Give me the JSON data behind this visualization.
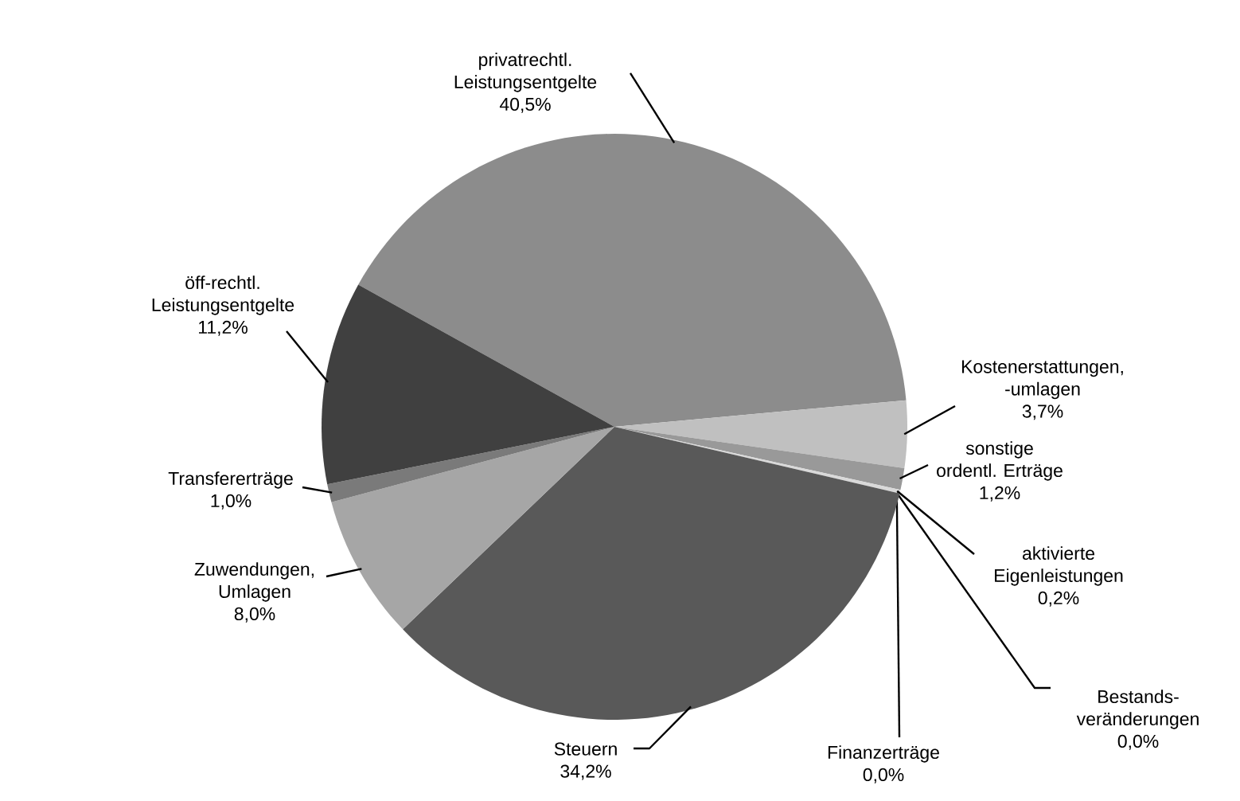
{
  "chart_data": {
    "type": "pie",
    "categories": [
      "privatrechtl. Leistungsentgelte",
      "Kostenerstattungen, -umlagen",
      "sonstige ordentl. Erträge",
      "aktivierte Eigenleistungen",
      "Bestands- veränderungen",
      "Finanzerträge",
      "Steuern",
      "Zuwendungen, Umlagen",
      "Transfererträge",
      "öff-rechtl. Leistungsentgelte"
    ],
    "values": [
      40.5,
      3.7,
      1.2,
      0.2,
      0.0,
      0.0,
      34.2,
      8.0,
      1.0,
      11.2
    ],
    "value_labels": [
      "40,5%",
      "3,7%",
      "1,2%",
      "0,2%",
      "0,0%",
      "0,0%",
      "34,2%",
      "8,0%",
      "1,0%",
      "11,2%"
    ],
    "colors": [
      "#8c8c8c",
      "#c0c0c0",
      "#999999",
      "#d9d9d9",
      "#bfbfbf",
      "#808080",
      "#595959",
      "#a6a6a6",
      "#7a7a7a",
      "#404040"
    ]
  }
}
